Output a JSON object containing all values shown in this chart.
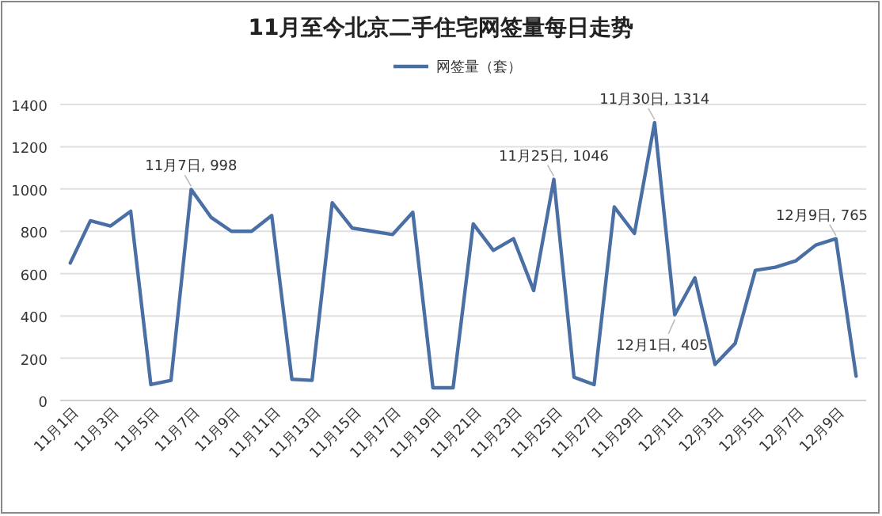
{
  "chart_data": {
    "type": "line",
    "title": "11月至今北京二手住宅网签量每日走势",
    "categories": [
      "11月1日",
      null,
      "11月3日",
      null,
      "11月5日",
      null,
      "11月7日",
      null,
      "11月9日",
      null,
      "11月11日",
      null,
      "11月13日",
      null,
      "11月15日",
      null,
      "11月17日",
      null,
      "11月19日",
      null,
      "11月21日",
      null,
      "11月23日",
      null,
      "11月25日",
      null,
      "11月27日",
      null,
      "11月29日",
      null,
      "12月1日",
      null,
      "12月3日",
      null,
      "12月5日",
      null,
      "12月7日",
      null,
      "12月9日",
      null
    ],
    "series": [
      {
        "name": "网签量（套）",
        "color": "#4a6fa5",
        "values": [
          650,
          850,
          825,
          895,
          75,
          95,
          998,
          865,
          800,
          800,
          875,
          100,
          95,
          935,
          815,
          800,
          785,
          890,
          60,
          60,
          835,
          710,
          765,
          520,
          1046,
          110,
          75,
          915,
          790,
          1314,
          405,
          580,
          170,
          270,
          615,
          630,
          660,
          735,
          765,
          115
        ],
        "value_labels": [
          null,
          null,
          null,
          null,
          null,
          null,
          "11月7日, 998",
          null,
          null,
          null,
          null,
          null,
          null,
          null,
          null,
          null,
          null,
          null,
          null,
          null,
          null,
          null,
          null,
          null,
          "11月25日, 1046",
          null,
          null,
          null,
          null,
          "11月30日, 1314",
          "12月1日, 405",
          null,
          null,
          null,
          null,
          null,
          null,
          null,
          "12月9日, 765",
          null
        ]
      }
    ],
    "ylim": [
      0,
      1400
    ],
    "yticks": [
      0,
      200,
      400,
      600,
      800,
      1000,
      1200,
      1400
    ],
    "grid": "y",
    "legend": "top",
    "marker": "none",
    "line_style": "solid"
  }
}
